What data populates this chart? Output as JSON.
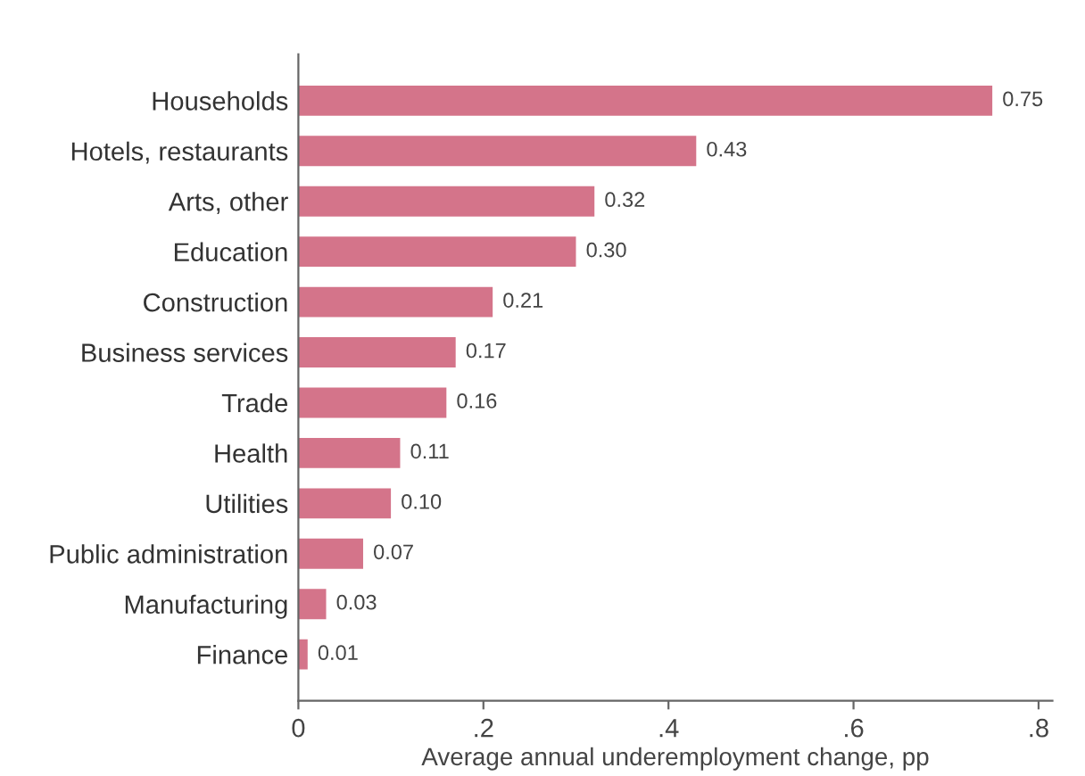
{
  "chart_data": {
    "type": "bar",
    "orientation": "horizontal",
    "categories": [
      "Households",
      "Hotels, restaurants",
      "Arts, other",
      "Education",
      "Construction",
      "Business services",
      "Trade",
      "Health",
      "Utilities",
      "Public administration",
      "Manufacturing",
      "Finance"
    ],
    "values": [
      0.75,
      0.43,
      0.32,
      0.3,
      0.21,
      0.17,
      0.16,
      0.11,
      0.1,
      0.07,
      0.03,
      0.01
    ],
    "value_labels": [
      "0.75",
      "0.43",
      "0.32",
      "0.30",
      "0.21",
      "0.17",
      "0.16",
      "0.11",
      "0.10",
      "0.07",
      "0.03",
      "0.01"
    ],
    "color": "#d4748a",
    "xlabel": "Average annual underemployment change, pp",
    "xlim": [
      0,
      0.815
    ],
    "xticks": [
      0,
      {
        "value": 0.2,
        "label": ".2"
      },
      {
        "value": 0.4,
        "label": ".4"
      },
      {
        "value": 0.6,
        "label": ".6"
      },
      {
        "value": 0.8,
        "label": ".8"
      }
    ],
    "grid": false,
    "legend": false
  }
}
